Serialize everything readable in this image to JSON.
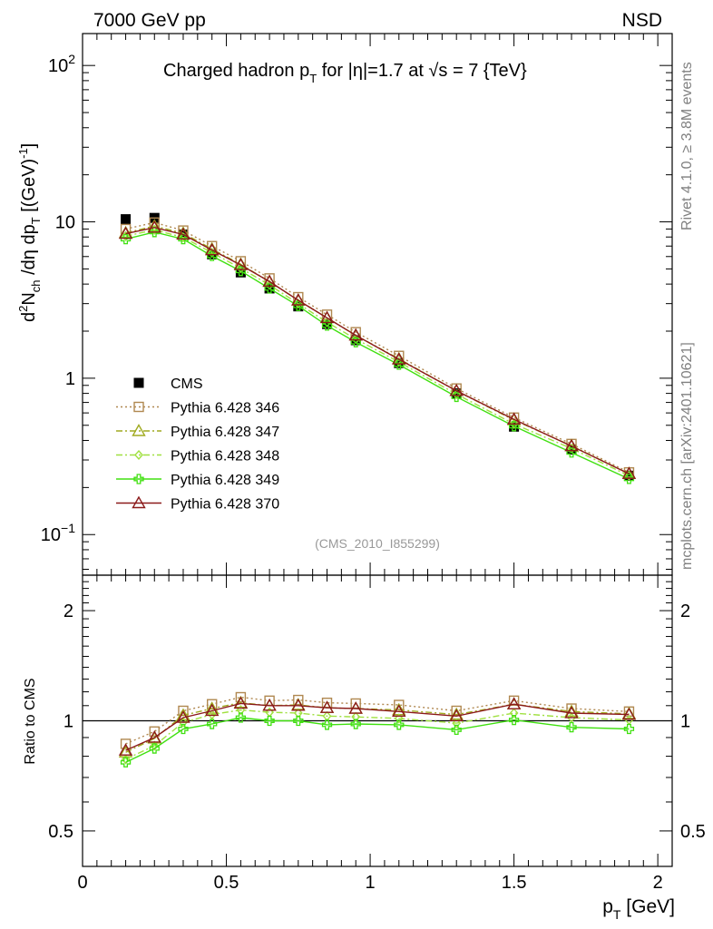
{
  "header": {
    "left": "7000 GeV pp",
    "right": "NSD",
    "rivet_version": "Rivet 4.1.0, ≥ 3.8M events",
    "mcplots_credit": "mcplots.cern.ch [arXiv:2401.10621]"
  },
  "chart_data": [
    {
      "type": "scatter",
      "role": "main",
      "title": "Charged hadron p_T for |η|=1.7 at √s = 7 {TeV}",
      "title_parts": {
        "a": "Charged hadron p",
        "a_sub": "T",
        "b": " for |η|=1.7 at √s = 7 {TeV}"
      },
      "ylabel": "d²N_ch/dη dp_T [(GeV)⁻¹]",
      "ylabel_parts": [
        "d",
        "2",
        "N",
        "ch",
        " /dη  dp",
        "T",
        " [(GeV)",
        "-1",
        "]"
      ],
      "yscale": "log",
      "ylim": [
        0.055,
        160
      ],
      "xlim": [
        0,
        2.05
      ],
      "yticks": [
        {
          "v": 100,
          "base": "10",
          "exp": "2"
        },
        {
          "v": 10,
          "base": "10",
          "exp": ""
        },
        {
          "v": 1,
          "base": "1",
          "exp": ""
        },
        {
          "v": 0.1,
          "base": "10",
          "exp": "−1"
        }
      ],
      "watermark": "(CMS_2010_I855299)",
      "x": [
        0.15,
        0.25,
        0.35,
        0.45,
        0.55,
        0.65,
        0.75,
        0.85,
        0.95,
        1.1,
        1.3,
        1.5,
        1.7,
        1.9
      ],
      "series": [
        {
          "name": "CMS",
          "color": "#000000",
          "marker": "square",
          "line": "none",
          "values": [
            10.4,
            10.6,
            8.3,
            6.2,
            4.75,
            3.75,
            2.88,
            2.22,
            1.75,
            1.25,
            0.8,
            0.49,
            0.35,
            0.238
          ]
        },
        {
          "name": "Pythia 6.428 346",
          "color": "#b08850",
          "marker": "open-square",
          "line": "dotted",
          "values": [
            9.0,
            9.9,
            8.8,
            7.0,
            5.6,
            4.35,
            3.3,
            2.55,
            1.97,
            1.39,
            0.86,
            0.56,
            0.38,
            0.25
          ]
        },
        {
          "name": "Pythia 6.428 347",
          "color": "#a0aa20",
          "marker": "open-triangle",
          "line": "dashdot",
          "values": [
            8.5,
            9.4,
            8.45,
            6.7,
            5.35,
            4.15,
            3.15,
            2.43,
            1.88,
            1.33,
            0.83,
            0.54,
            0.37,
            0.245
          ]
        },
        {
          "name": "Pythia 6.428 348",
          "color": "#a0e040",
          "marker": "diamond",
          "line": "dashdot",
          "values": [
            8.1,
            8.9,
            7.95,
            6.35,
            5.05,
            3.95,
            3.0,
            2.28,
            1.78,
            1.27,
            0.79,
            0.51,
            0.355,
            0.238
          ]
        },
        {
          "name": "Pythia 6.428 349",
          "color": "#40e010",
          "marker": "cross",
          "line": "solid",
          "values": [
            7.75,
            8.6,
            7.75,
            6.05,
            4.85,
            3.75,
            2.9,
            2.17,
            1.7,
            1.22,
            0.76,
            0.493,
            0.335,
            0.227
          ]
        },
        {
          "name": "Pythia 6.428 370",
          "color": "#8b1a1a",
          "marker": "open-triangle",
          "line": "solid",
          "values": [
            8.4,
            9.2,
            8.3,
            6.6,
            5.3,
            4.15,
            3.15,
            2.43,
            1.88,
            1.32,
            0.83,
            0.545,
            0.368,
            0.245
          ]
        }
      ]
    },
    {
      "type": "scatter",
      "role": "ratio",
      "ylabel": "Ratio to CMS",
      "yscale": "log",
      "ylim": [
        0.4,
        2.5
      ],
      "xlabel": "p_T [GeV]",
      "xlabel_parts": {
        "a": "p",
        "sub": "T",
        "b": " [GeV]"
      },
      "xticks": [
        {
          "v": 0,
          "label": "0"
        },
        {
          "v": 0.5,
          "label": "0.5"
        },
        {
          "v": 1,
          "label": "1"
        },
        {
          "v": 1.5,
          "label": "1.5"
        },
        {
          "v": 2,
          "label": "2"
        }
      ],
      "yticks": [
        {
          "v": 0.5,
          "label": "0.5"
        },
        {
          "v": 1,
          "label": "1"
        },
        {
          "v": 2,
          "label": "2"
        }
      ],
      "x": [
        0.15,
        0.25,
        0.35,
        0.45,
        0.55,
        0.65,
        0.75,
        0.85,
        0.95,
        1.1,
        1.3,
        1.5,
        1.7,
        1.9
      ],
      "series": [
        {
          "name": "Pythia 6.428 346",
          "values": [
            0.865,
            0.935,
            1.065,
            1.11,
            1.16,
            1.135,
            1.14,
            1.12,
            1.115,
            1.105,
            1.065,
            1.135,
            1.08,
            1.06
          ]
        },
        {
          "name": "Pythia 6.428 347",
          "values": [
            0.82,
            0.895,
            1.035,
            1.08,
            1.12,
            1.1,
            1.105,
            1.085,
            1.08,
            1.07,
            1.04,
            1.11,
            1.06,
            1.045
          ]
        },
        {
          "name": "Pythia 6.428 348",
          "values": [
            0.785,
            0.855,
            0.99,
            1.04,
            1.07,
            1.055,
            1.05,
            1.03,
            1.025,
            1.015,
            0.985,
            1.05,
            1.02,
            1.005
          ]
        },
        {
          "name": "Pythia 6.428 349",
          "values": [
            0.77,
            0.84,
            0.95,
            0.98,
            1.02,
            1.0,
            1.0,
            0.975,
            0.98,
            0.975,
            0.945,
            1.005,
            0.96,
            0.95
          ]
        },
        {
          "name": "Pythia 6.428 370",
          "values": [
            0.83,
            0.9,
            1.02,
            1.065,
            1.115,
            1.1,
            1.1,
            1.085,
            1.08,
            1.06,
            1.03,
            1.11,
            1.05,
            1.04
          ]
        }
      ]
    }
  ]
}
